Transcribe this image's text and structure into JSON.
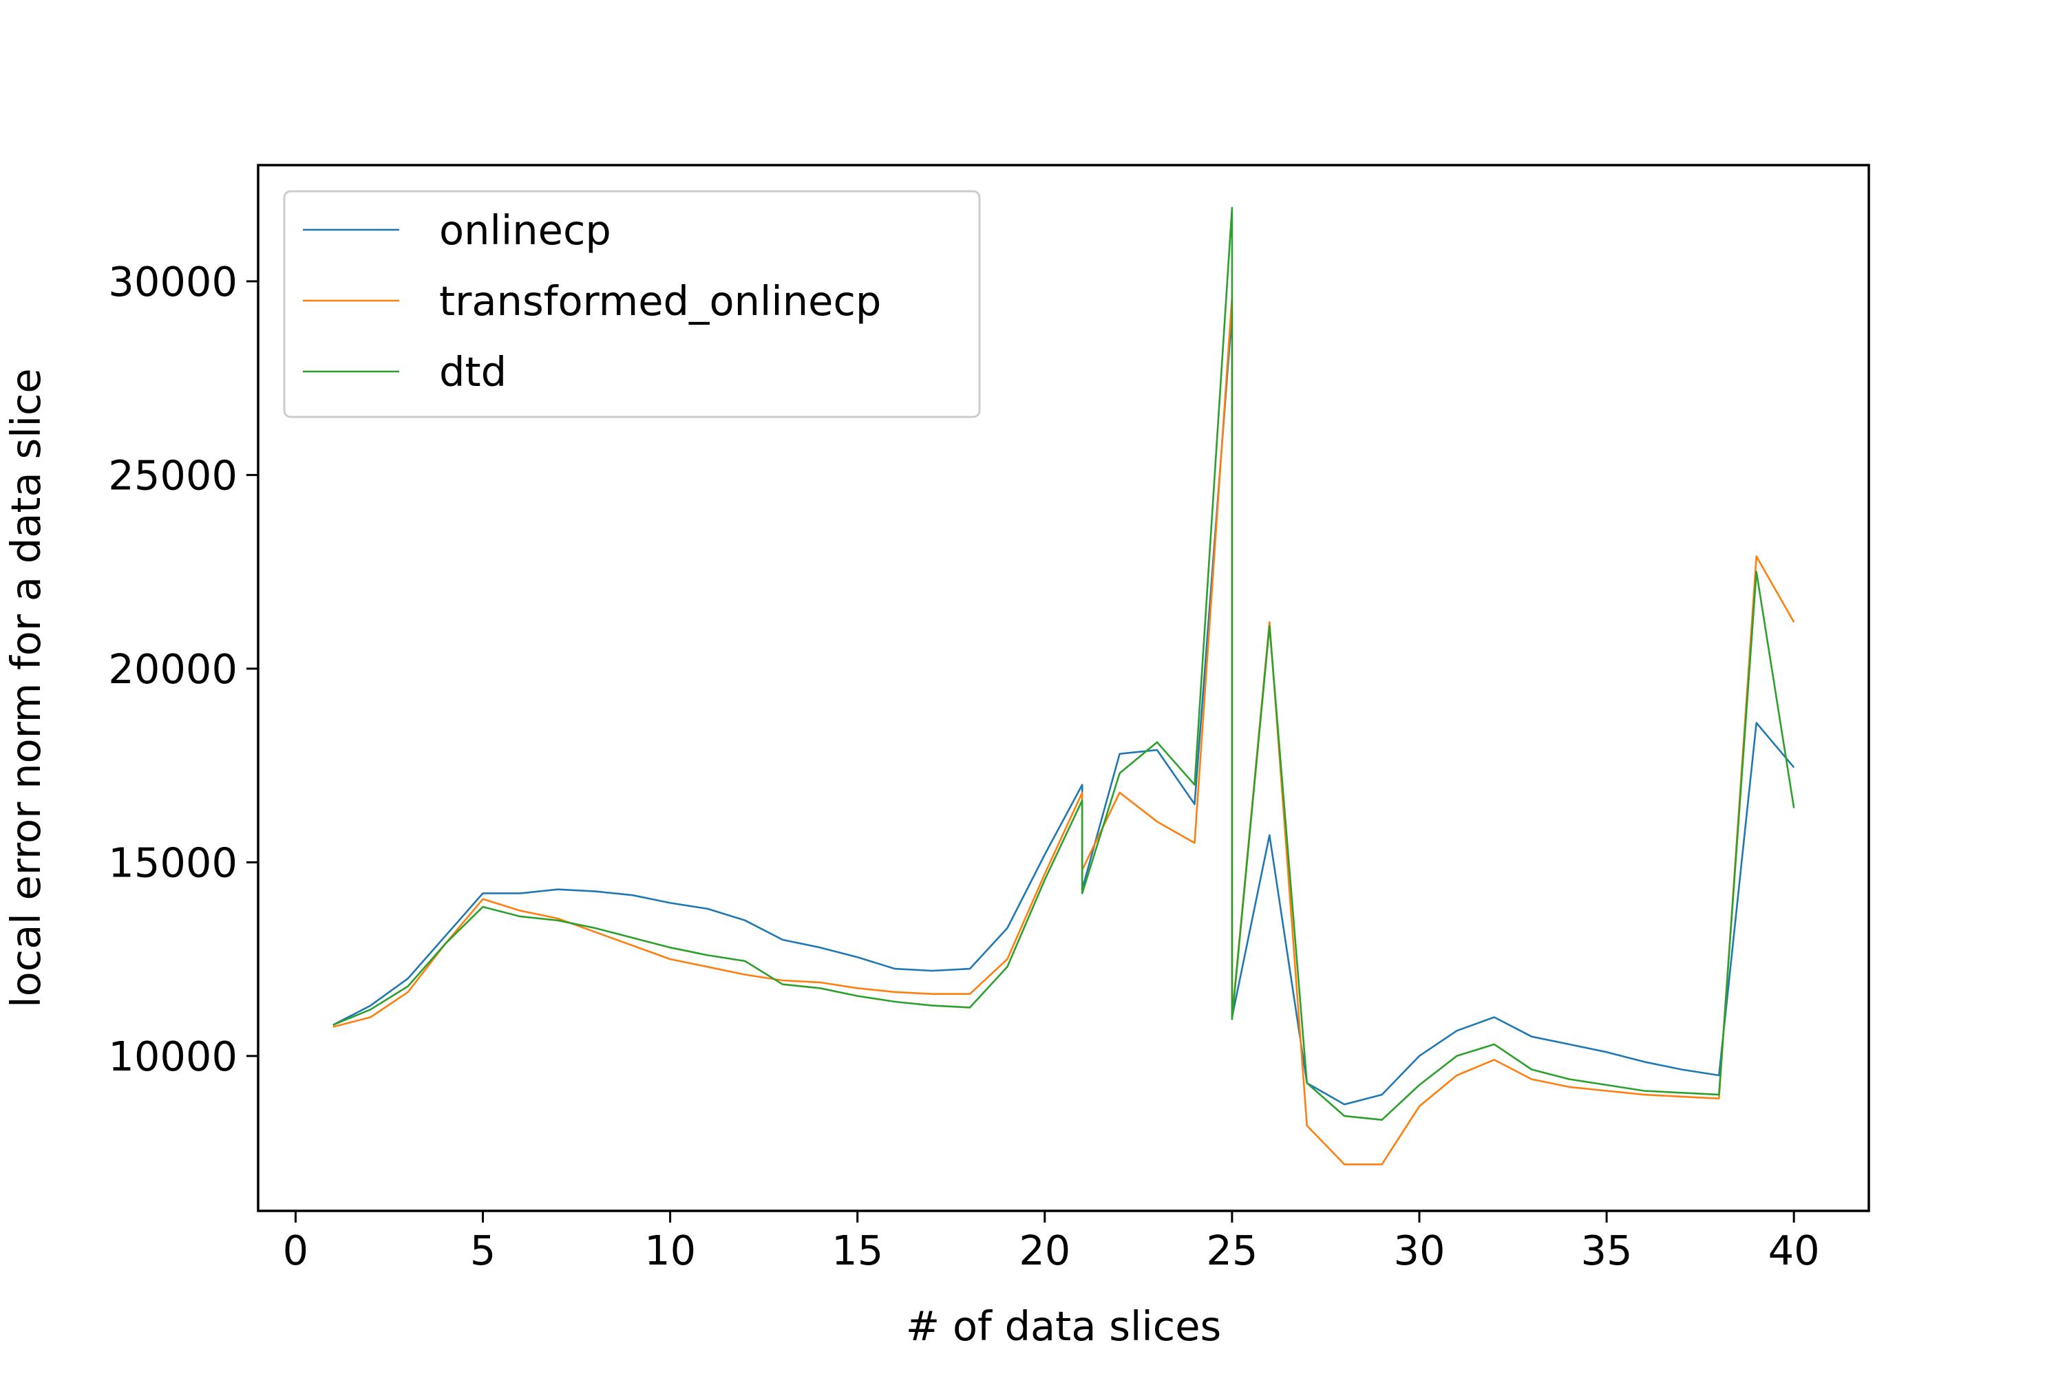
{
  "chart_data": {
    "type": "line",
    "xlabel": "# of data slices",
    "ylabel": "local error norm for a data slice",
    "xlim": [
      -1,
      42
    ],
    "ylim": [
      6000,
      33000
    ],
    "xticks": [
      0,
      5,
      10,
      15,
      20,
      25,
      30,
      35,
      40
    ],
    "yticks": [
      10000,
      15000,
      20000,
      25000,
      30000
    ],
    "grid": false,
    "legend_position": "top-left",
    "series": [
      {
        "name": "onlinecp",
        "color": "#1f77b4",
        "points": [
          [
            1,
            10800
          ],
          [
            2,
            11300
          ],
          [
            3,
            12000
          ],
          [
            4,
            13100
          ],
          [
            5,
            14200
          ],
          [
            6,
            14200
          ],
          [
            7,
            14300
          ],
          [
            8,
            14250
          ],
          [
            9,
            14150
          ],
          [
            10,
            13950
          ],
          [
            11,
            13800
          ],
          [
            12,
            13500
          ],
          [
            13,
            13000
          ],
          [
            14,
            12800
          ],
          [
            15,
            12550
          ],
          [
            16,
            12250
          ],
          [
            17,
            12200
          ],
          [
            18,
            12250
          ],
          [
            19,
            13300
          ],
          [
            20,
            15200
          ],
          [
            21,
            17000
          ],
          [
            21,
            14300
          ],
          [
            22,
            17800
          ],
          [
            23,
            17900
          ],
          [
            24,
            16500
          ],
          [
            25,
            29200
          ],
          [
            25,
            11000
          ],
          [
            26,
            15700
          ],
          [
            27,
            9300
          ],
          [
            28,
            8750
          ],
          [
            29,
            9000
          ],
          [
            30,
            10000
          ],
          [
            31,
            10650
          ],
          [
            32,
            11000
          ],
          [
            33,
            10500
          ],
          [
            34,
            10300
          ],
          [
            35,
            10100
          ],
          [
            36,
            9850
          ],
          [
            37,
            9650
          ],
          [
            38,
            9500
          ],
          [
            39,
            18600
          ],
          [
            40,
            17450
          ]
        ]
      },
      {
        "name": "transformed_onlinecp",
        "color": "#ff7f0e",
        "points": [
          [
            1,
            10750
          ],
          [
            2,
            11000
          ],
          [
            3,
            11650
          ],
          [
            4,
            12900
          ],
          [
            5,
            14050
          ],
          [
            6,
            13750
          ],
          [
            7,
            13550
          ],
          [
            8,
            13200
          ],
          [
            9,
            12850
          ],
          [
            10,
            12500
          ],
          [
            11,
            12300
          ],
          [
            12,
            12100
          ],
          [
            13,
            11950
          ],
          [
            14,
            11900
          ],
          [
            15,
            11750
          ],
          [
            16,
            11650
          ],
          [
            17,
            11600
          ],
          [
            18,
            11600
          ],
          [
            19,
            12500
          ],
          [
            20,
            14700
          ],
          [
            21,
            16800
          ],
          [
            21,
            14800
          ],
          [
            22,
            16800
          ],
          [
            23,
            16050
          ],
          [
            24,
            15500
          ],
          [
            25,
            29600
          ],
          [
            25,
            11000
          ],
          [
            26,
            21200
          ],
          [
            27,
            8200
          ],
          [
            28,
            7200
          ],
          [
            29,
            7200
          ],
          [
            30,
            8700
          ],
          [
            31,
            9500
          ],
          [
            32,
            9900
          ],
          [
            33,
            9400
          ],
          [
            34,
            9200
          ],
          [
            35,
            9100
          ],
          [
            36,
            9000
          ],
          [
            37,
            8950
          ],
          [
            38,
            8900
          ],
          [
            39,
            22900
          ],
          [
            40,
            21200
          ]
        ]
      },
      {
        "name": "dtd",
        "color": "#2ca02c",
        "points": [
          [
            1,
            10800
          ],
          [
            2,
            11200
          ],
          [
            3,
            11800
          ],
          [
            4,
            12900
          ],
          [
            5,
            13850
          ],
          [
            6,
            13600
          ],
          [
            7,
            13500
          ],
          [
            8,
            13300
          ],
          [
            9,
            13050
          ],
          [
            10,
            12800
          ],
          [
            11,
            12600
          ],
          [
            12,
            12450
          ],
          [
            13,
            11850
          ],
          [
            14,
            11750
          ],
          [
            15,
            11550
          ],
          [
            16,
            11400
          ],
          [
            17,
            11300
          ],
          [
            18,
            11250
          ],
          [
            19,
            12300
          ],
          [
            20,
            14550
          ],
          [
            21,
            16600
          ],
          [
            21,
            14200
          ],
          [
            22,
            17300
          ],
          [
            23,
            18100
          ],
          [
            24,
            17000
          ],
          [
            25,
            31900
          ],
          [
            25,
            10950
          ],
          [
            26,
            21100
          ],
          [
            27,
            9300
          ],
          [
            28,
            8450
          ],
          [
            29,
            8350
          ],
          [
            30,
            9250
          ],
          [
            31,
            10000
          ],
          [
            32,
            10300
          ],
          [
            33,
            9650
          ],
          [
            34,
            9400
          ],
          [
            35,
            9250
          ],
          [
            36,
            9100
          ],
          [
            37,
            9050
          ],
          [
            38,
            9000
          ],
          [
            39,
            22500
          ],
          [
            40,
            16400
          ]
        ]
      }
    ]
  }
}
